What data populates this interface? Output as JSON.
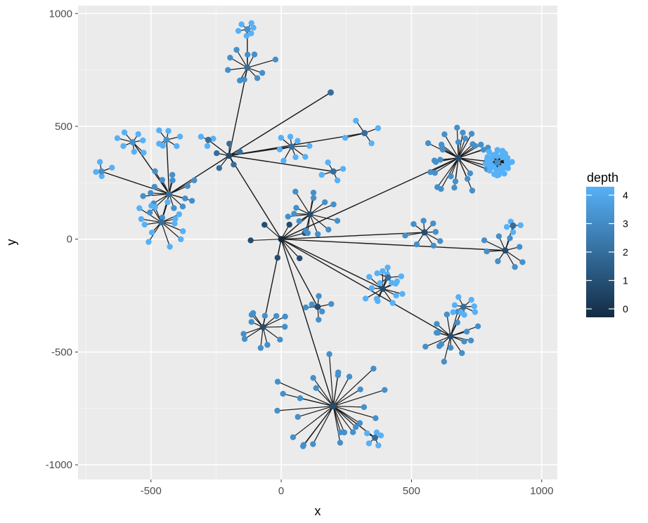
{
  "chart_data": {
    "type": "scatter",
    "subtype": "network-graph",
    "xlabel": "x",
    "ylabel": "y",
    "xlim": [
      -780,
      1060
    ],
    "ylim": [
      -1065,
      1035
    ],
    "x_ticks": [
      -500,
      0,
      500,
      1000
    ],
    "y_ticks": [
      1000,
      500,
      0,
      -500,
      -1000
    ],
    "x_tick_labels": [
      "-500",
      "0",
      "500",
      "1000"
    ],
    "y_tick_labels": [
      "1000",
      "500",
      "0",
      "-500",
      "-1000"
    ],
    "grid": true,
    "legend": {
      "title": "depth",
      "position": "right",
      "min": 0,
      "max": 4,
      "ticks": [
        0,
        1,
        2,
        3,
        4
      ],
      "tick_labels": [
        "0",
        "1",
        "2",
        "3",
        "4"
      ],
      "low_color": "#132b43",
      "high_color": "#56b1f7"
    },
    "colors": {
      "panel_background": "#ebebeb",
      "grid_major": "#ffffff",
      "edge": "#1a1a1a",
      "depth_0": "#132b43",
      "depth_4": "#56b1f7"
    },
    "nodes": [
      {
        "x": 0,
        "y": 0,
        "depth": 0
      },
      {
        "x": -200,
        "y": 370,
        "depth": 1
      },
      {
        "x": -430,
        "y": 200,
        "depth": 2
      },
      {
        "x": -460,
        "y": 75,
        "depth": 2
      },
      {
        "x": -570,
        "y": 430,
        "depth": 3
      },
      {
        "x": -440,
        "y": 440,
        "depth": 3
      },
      {
        "x": -690,
        "y": 300,
        "depth": 3
      },
      {
        "x": -130,
        "y": 760,
        "depth": 2
      },
      {
        "x": 40,
        "y": 410,
        "depth": 2
      },
      {
        "x": 320,
        "y": 470,
        "depth": 2
      },
      {
        "x": 200,
        "y": 300,
        "depth": 2
      },
      {
        "x": -280,
        "y": 440,
        "depth": 2
      },
      {
        "x": 190,
        "y": 650,
        "depth": 2
      },
      {
        "x": 110,
        "y": 110,
        "depth": 1
      },
      {
        "x": 680,
        "y": 360,
        "depth": 1
      },
      {
        "x": 830,
        "y": 340,
        "depth": 3
      },
      {
        "x": 550,
        "y": 30,
        "depth": 1
      },
      {
        "x": 860,
        "y": -50,
        "depth": 1
      },
      {
        "x": 390,
        "y": -220,
        "depth": 1
      },
      {
        "x": 650,
        "y": -430,
        "depth": 1
      },
      {
        "x": 700,
        "y": -300,
        "depth": 2
      },
      {
        "x": 410,
        "y": -170,
        "depth": 2
      },
      {
        "x": 200,
        "y": -740,
        "depth": 1
      },
      {
        "x": -70,
        "y": -390,
        "depth": 1
      },
      {
        "x": 140,
        "y": -300,
        "depth": 1
      },
      {
        "x": 360,
        "y": -880,
        "depth": 2
      },
      {
        "x": 890,
        "y": 60,
        "depth": 2
      },
      {
        "x": -130,
        "y": 930,
        "depth": 3
      }
    ],
    "edges": [
      [
        0,
        1
      ],
      [
        0,
        13
      ],
      [
        0,
        14
      ],
      [
        0,
        16
      ],
      [
        0,
        17
      ],
      [
        0,
        18
      ],
      [
        0,
        19
      ],
      [
        0,
        22
      ],
      [
        0,
        23
      ],
      [
        0,
        24
      ],
      [
        1,
        2
      ],
      [
        1,
        7
      ],
      [
        1,
        8
      ],
      [
        1,
        9
      ],
      [
        1,
        10
      ],
      [
        1,
        11
      ],
      [
        1,
        12
      ],
      [
        2,
        3
      ],
      [
        2,
        4
      ],
      [
        2,
        5
      ],
      [
        2,
        6
      ],
      [
        7,
        27
      ],
      [
        14,
        15
      ],
      [
        17,
        26
      ],
      [
        18,
        21
      ],
      [
        19,
        20
      ],
      [
        22,
        25
      ]
    ],
    "hubs": [
      {
        "x": 0,
        "y": 0,
        "count": 6,
        "radius": 120,
        "depth": 0
      },
      {
        "x": -200,
        "y": 370,
        "count": 5,
        "radius": 90,
        "depth": 1
      },
      {
        "x": -430,
        "y": 200,
        "count": 16,
        "radius": 110,
        "depth": 2
      },
      {
        "x": -460,
        "y": 75,
        "count": 14,
        "radius": 110,
        "depth": 3
      },
      {
        "x": -570,
        "y": 430,
        "count": 7,
        "radius": 60,
        "depth": 4
      },
      {
        "x": -440,
        "y": 440,
        "count": 6,
        "radius": 55,
        "depth": 4
      },
      {
        "x": -690,
        "y": 300,
        "count": 4,
        "radius": 45,
        "depth": 4
      },
      {
        "x": -130,
        "y": 760,
        "count": 10,
        "radius": 120,
        "depth": 2
      },
      {
        "x": -130,
        "y": 930,
        "count": 6,
        "radius": 35,
        "depth": 4
      },
      {
        "x": 40,
        "y": 410,
        "count": 8,
        "radius": 70,
        "depth": 3
      },
      {
        "x": 320,
        "y": 470,
        "count": 4,
        "radius": 75,
        "depth": 3
      },
      {
        "x": 200,
        "y": 300,
        "count": 4,
        "radius": 45,
        "depth": 3
      },
      {
        "x": -280,
        "y": 440,
        "count": 3,
        "radius": 40,
        "depth": 4
      },
      {
        "x": 110,
        "y": 110,
        "count": 14,
        "radius": 110,
        "depth": 2
      },
      {
        "x": 680,
        "y": 360,
        "count": 32,
        "radius": 150,
        "depth": 2
      },
      {
        "x": 830,
        "y": 340,
        "count": 45,
        "radius": 55,
        "depth": 3
      },
      {
        "x": 550,
        "y": 30,
        "count": 8,
        "radius": 80,
        "depth": 2
      },
      {
        "x": 860,
        "y": -50,
        "count": 8,
        "radius": 95,
        "depth": 2
      },
      {
        "x": 890,
        "y": 60,
        "count": 4,
        "radius": 40,
        "depth": 3
      },
      {
        "x": 390,
        "y": -220,
        "count": 12,
        "radius": 85,
        "depth": 3
      },
      {
        "x": 410,
        "y": -170,
        "count": 5,
        "radius": 55,
        "depth": 3
      },
      {
        "x": 650,
        "y": -430,
        "count": 16,
        "radius": 110,
        "depth": 2
      },
      {
        "x": 700,
        "y": -300,
        "count": 8,
        "radius": 55,
        "depth": 3
      },
      {
        "x": 200,
        "y": -740,
        "count": 26,
        "radius": 230,
        "depth": 2
      },
      {
        "x": 360,
        "y": -880,
        "count": 5,
        "radius": 45,
        "depth": 3
      },
      {
        "x": -70,
        "y": -390,
        "count": 12,
        "radius": 95,
        "depth": 2
      },
      {
        "x": 140,
        "y": -300,
        "count": 6,
        "radius": 55,
        "depth": 2
      }
    ]
  }
}
